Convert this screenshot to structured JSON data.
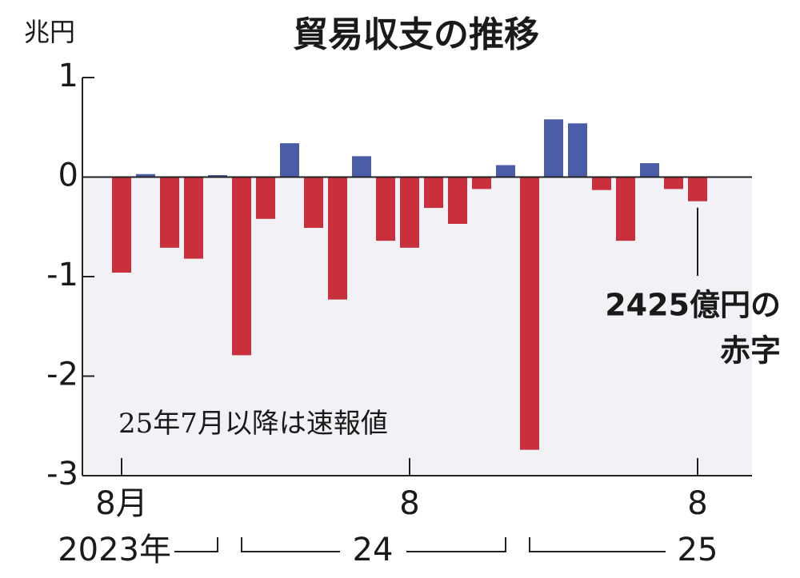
{
  "chart_data": {
    "type": "bar",
    "title": "貿易収支の推移",
    "y_label": "兆円",
    "note": "25年7月以降は速報値",
    "annotation": [
      "2425億円の",
      "赤字"
    ],
    "categories": [
      "8月",
      null,
      null,
      null,
      null,
      null,
      null,
      null,
      null,
      null,
      null,
      null,
      "8",
      null,
      null,
      null,
      null,
      null,
      null,
      null,
      null,
      null,
      null,
      null,
      "8"
    ],
    "year_labels": [
      "2023年",
      "24",
      "25"
    ],
    "values": [
      -0.96,
      0.03,
      -0.71,
      -0.82,
      0.02,
      -1.79,
      -0.42,
      0.34,
      -0.51,
      -1.23,
      0.21,
      -0.64,
      -0.71,
      -0.31,
      -0.47,
      -0.12,
      0.12,
      -2.74,
      0.58,
      0.54,
      -0.13,
      -0.64,
      0.14,
      -0.12,
      -0.2425
    ],
    "positive_color": "#4a5da6",
    "negative_color": "#c8303b",
    "ylim": [
      -3,
      1
    ],
    "yticks": [
      1,
      0,
      -1,
      -2,
      -3
    ]
  }
}
